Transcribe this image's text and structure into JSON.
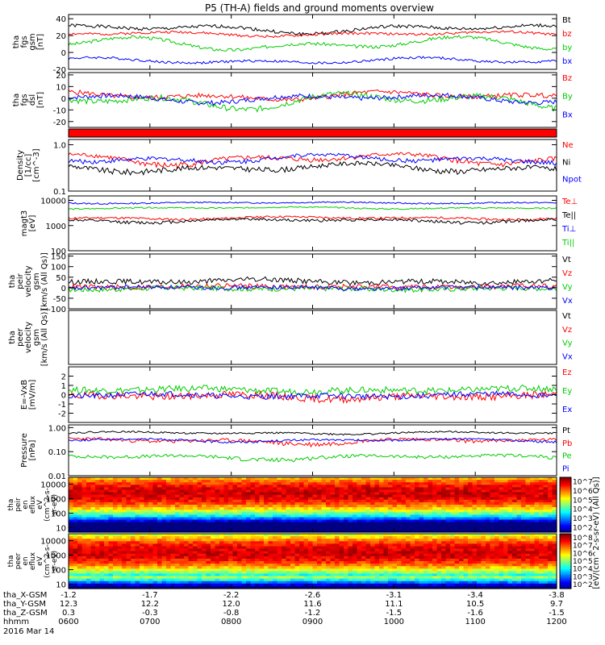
{
  "title": "P5 (TH-A) fields and ground moments overview",
  "chart_data": {
    "type": "line",
    "title": "P5 (TH-A) fields and ground moments overview",
    "date": "2016 Mar 14",
    "x_ticks": [
      "0600",
      "0700",
      "0800",
      "0900",
      "1000",
      "1100",
      "1200"
    ],
    "ephemeris": [
      {
        "label": "tha_X-GSM",
        "values": [
          "-1.2",
          "-1.7",
          "-2.2",
          "-2.6",
          "-3.1",
          "-3.4",
          "-3.8"
        ]
      },
      {
        "label": "tha_Y-GSM",
        "values": [
          "12.3",
          "12.2",
          "12.0",
          "11.6",
          "11.1",
          "10.5",
          "9.7"
        ]
      },
      {
        "label": "tha_Z-GSM",
        "values": [
          "0.3",
          "-0.3",
          "-0.8",
          "-1.2",
          "-1.5",
          "-1.6",
          "-1.5"
        ]
      },
      {
        "label": "hhmm",
        "values": [
          "0600",
          "0700",
          "0800",
          "0900",
          "1000",
          "1100",
          "1200"
        ]
      }
    ],
    "panels": [
      {
        "id": "fgs-gsm",
        "ylabel": [
          "tha",
          "fgs",
          "gsm",
          "[nT]"
        ],
        "scale": "linear",
        "ylim": [
          -20,
          45
        ],
        "yticks": [
          "-20",
          "0",
          "20",
          "40"
        ],
        "series": [
          {
            "name": "Bt",
            "color": "#000000",
            "base": 28,
            "amp": 6,
            "noise": 2,
            "seed": 1
          },
          {
            "name": "bz",
            "color": "#ff0000",
            "base": 22,
            "amp": 3,
            "noise": 1.5,
            "seed": 2
          },
          {
            "name": "by",
            "color": "#00cc00",
            "base": 10,
            "amp": 9,
            "noise": 2,
            "seed": 3
          },
          {
            "name": "bx",
            "color": "#0000ff",
            "base": -10,
            "amp": 4,
            "noise": 1.5,
            "seed": 4
          }
        ]
      },
      {
        "id": "fgs-gse",
        "ylabel": [
          "tha",
          "fgs",
          "dsl",
          "[nT]"
        ],
        "scale": "linear",
        "ylim": [
          -25,
          22
        ],
        "yticks": [
          "-20",
          "-10",
          "0",
          "10",
          "20"
        ],
        "series": [
          {
            "name": "Bz",
            "color": "#ff0000",
            "base": 2,
            "amp": 4,
            "noise": 2,
            "seed": 5
          },
          {
            "name": "By",
            "color": "#00cc00",
            "base": -2,
            "amp": 8,
            "noise": 2.5,
            "seed": 6
          },
          {
            "name": "Bx",
            "color": "#0000ff",
            "base": 0,
            "amp": 4,
            "noise": 2,
            "seed": 7
          }
        ]
      },
      {
        "id": "density",
        "ylabel": [
          "Density",
          "[1/cc]",
          "[cm^-3]"
        ],
        "scale": "log",
        "ylim": [
          0.1,
          1.3
        ],
        "yticks": [
          "0.1",
          "1.0"
        ],
        "series": [
          {
            "name": "Ne",
            "color": "#ff0000",
            "base": 0.5,
            "amp": 0.15,
            "noise": 0.06,
            "seed": 8
          },
          {
            "name": "Ni",
            "color": "#000000",
            "base": 0.32,
            "amp": 0.08,
            "noise": 0.04,
            "seed": 9
          },
          {
            "name": "Npot",
            "color": "#0000ff",
            "base": 0.5,
            "amp": 0.12,
            "noise": 0.05,
            "seed": 10
          }
        ]
      },
      {
        "id": "temperature",
        "ylabel": [
          "magt3",
          "[eV]"
        ],
        "scale": "log",
        "ylim": [
          100,
          15000
        ],
        "yticks": [
          "100",
          "1000",
          "10000"
        ],
        "series": [
          {
            "name": "Te⊥",
            "color": "#ff0000",
            "base": 2000,
            "amp": 300,
            "noise": 200,
            "seed": 11
          },
          {
            "name": "Te||",
            "color": "#000000",
            "base": 1600,
            "amp": 300,
            "noise": 200,
            "seed": 12
          },
          {
            "name": "Ti⊥",
            "color": "#0000ff",
            "base": 8000,
            "amp": 600,
            "noise": 500,
            "seed": 13
          },
          {
            "name": "Ti||",
            "color": "#00cc00",
            "base": 5000,
            "amp": 500,
            "noise": 300,
            "seed": 14
          }
        ]
      },
      {
        "id": "peir-velocity",
        "ylabel": [
          "tha",
          "peir",
          "velocity",
          "gsm",
          "[km/s (All Qs)]"
        ],
        "scale": "linear",
        "ylim": [
          -100,
          160
        ],
        "yticks": [
          "-100",
          "-50",
          "0",
          "50",
          "100",
          "150"
        ],
        "series": [
          {
            "name": "Vt",
            "color": "#000000",
            "base": 30,
            "amp": 10,
            "noise": 12,
            "seed": 15
          },
          {
            "name": "Vz",
            "color": "#ff0000",
            "base": 5,
            "amp": 5,
            "noise": 12,
            "seed": 16
          },
          {
            "name": "Vy",
            "color": "#00cc00",
            "base": -5,
            "amp": 5,
            "noise": 12,
            "seed": 17
          },
          {
            "name": "Vx",
            "color": "#0000ff",
            "base": 0,
            "amp": 5,
            "noise": 10,
            "seed": 18
          }
        ]
      },
      {
        "id": "peer-velocity",
        "ylabel": [
          "tha",
          "peer",
          "velocity",
          "gsm",
          "[km/s (All Qs)]"
        ],
        "scale": "linear",
        "ylim": [
          -1,
          1
        ],
        "yticks": [],
        "series": [
          {
            "name": "Vt",
            "color": "#000000"
          },
          {
            "name": "Vz",
            "color": "#ff0000"
          },
          {
            "name": "Vy",
            "color": "#00cc00"
          },
          {
            "name": "Vx",
            "color": "#0000ff"
          }
        ]
      },
      {
        "id": "efield",
        "ylabel": [
          "E=-VxB",
          "[mV/m]"
        ],
        "scale": "linear",
        "ylim": [
          -3,
          3
        ],
        "yticks": [
          "-2",
          "-1",
          "0",
          "1",
          "2"
        ],
        "series": [
          {
            "name": "Ez",
            "color": "#ff0000",
            "base": -0.2,
            "amp": 0.3,
            "noise": 0.4,
            "seed": 19
          },
          {
            "name": "Ey",
            "color": "#00cc00",
            "base": 0.5,
            "amp": 0.2,
            "noise": 0.35,
            "seed": 20
          },
          {
            "name": "Ex",
            "color": "#0000ff",
            "base": -0.1,
            "amp": 0.2,
            "noise": 0.3,
            "seed": 21
          }
        ]
      },
      {
        "id": "pressure",
        "ylabel": [
          "Pressure",
          "[nPa]"
        ],
        "scale": "log",
        "ylim": [
          0.01,
          1.3
        ],
        "yticks": [
          "0.01",
          "0.10",
          "1.00"
        ],
        "series": [
          {
            "name": "Pt",
            "color": "#000000",
            "base": 0.6,
            "amp": 0.08,
            "noise": 0.05,
            "seed": 22
          },
          {
            "name": "Pb",
            "color": "#ff0000",
            "base": 0.28,
            "amp": 0.08,
            "noise": 0.05,
            "seed": 23
          },
          {
            "name": "Pe",
            "color": "#00cc00",
            "base": 0.06,
            "amp": 0.015,
            "noise": 0.01,
            "seed": 24
          },
          {
            "name": "Pi",
            "color": "#0000ff",
            "base": 0.3,
            "amp": 0.05,
            "noise": 0.03,
            "seed": 25
          }
        ]
      }
    ],
    "spectrograms": [
      {
        "id": "peir-en-eflux",
        "ylabel": [
          "tha",
          "peir",
          "en",
          "eflux",
          "eV",
          "(cm^2-s-",
          "sr-eV)"
        ],
        "scale": "log",
        "ylim": [
          5,
          30000
        ],
        "yticks": [
          "10",
          "100",
          "1000",
          "10000"
        ],
        "colorbar_ticks": [
          "10^2",
          "10^3",
          "10^4",
          "10^5",
          "10^6",
          "10^7"
        ],
        "peak_energy": 2500
      },
      {
        "id": "peer-en-eflux",
        "ylabel": [
          "tha",
          "peer",
          "en",
          "eflux",
          "eV",
          "(cm^2-s-",
          "sr-eV)"
        ],
        "scale": "log",
        "ylim": [
          5,
          30000
        ],
        "yticks": [
          "10",
          "100",
          "1000",
          "10000"
        ],
        "colorbar_ticks": [
          "10^2",
          "10^3",
          "10^4",
          "10^5",
          "10^6",
          "10^7",
          "10^8"
        ],
        "peak_energy": 1500
      }
    ],
    "colorbar_label": "[eV/(cm^2-s-sr-eV) (All Qs)]"
  },
  "colors": {
    "black": "#000000",
    "red": "#ff0000",
    "green": "#00cc00",
    "blue": "#0000ff",
    "frame": "#000000"
  }
}
